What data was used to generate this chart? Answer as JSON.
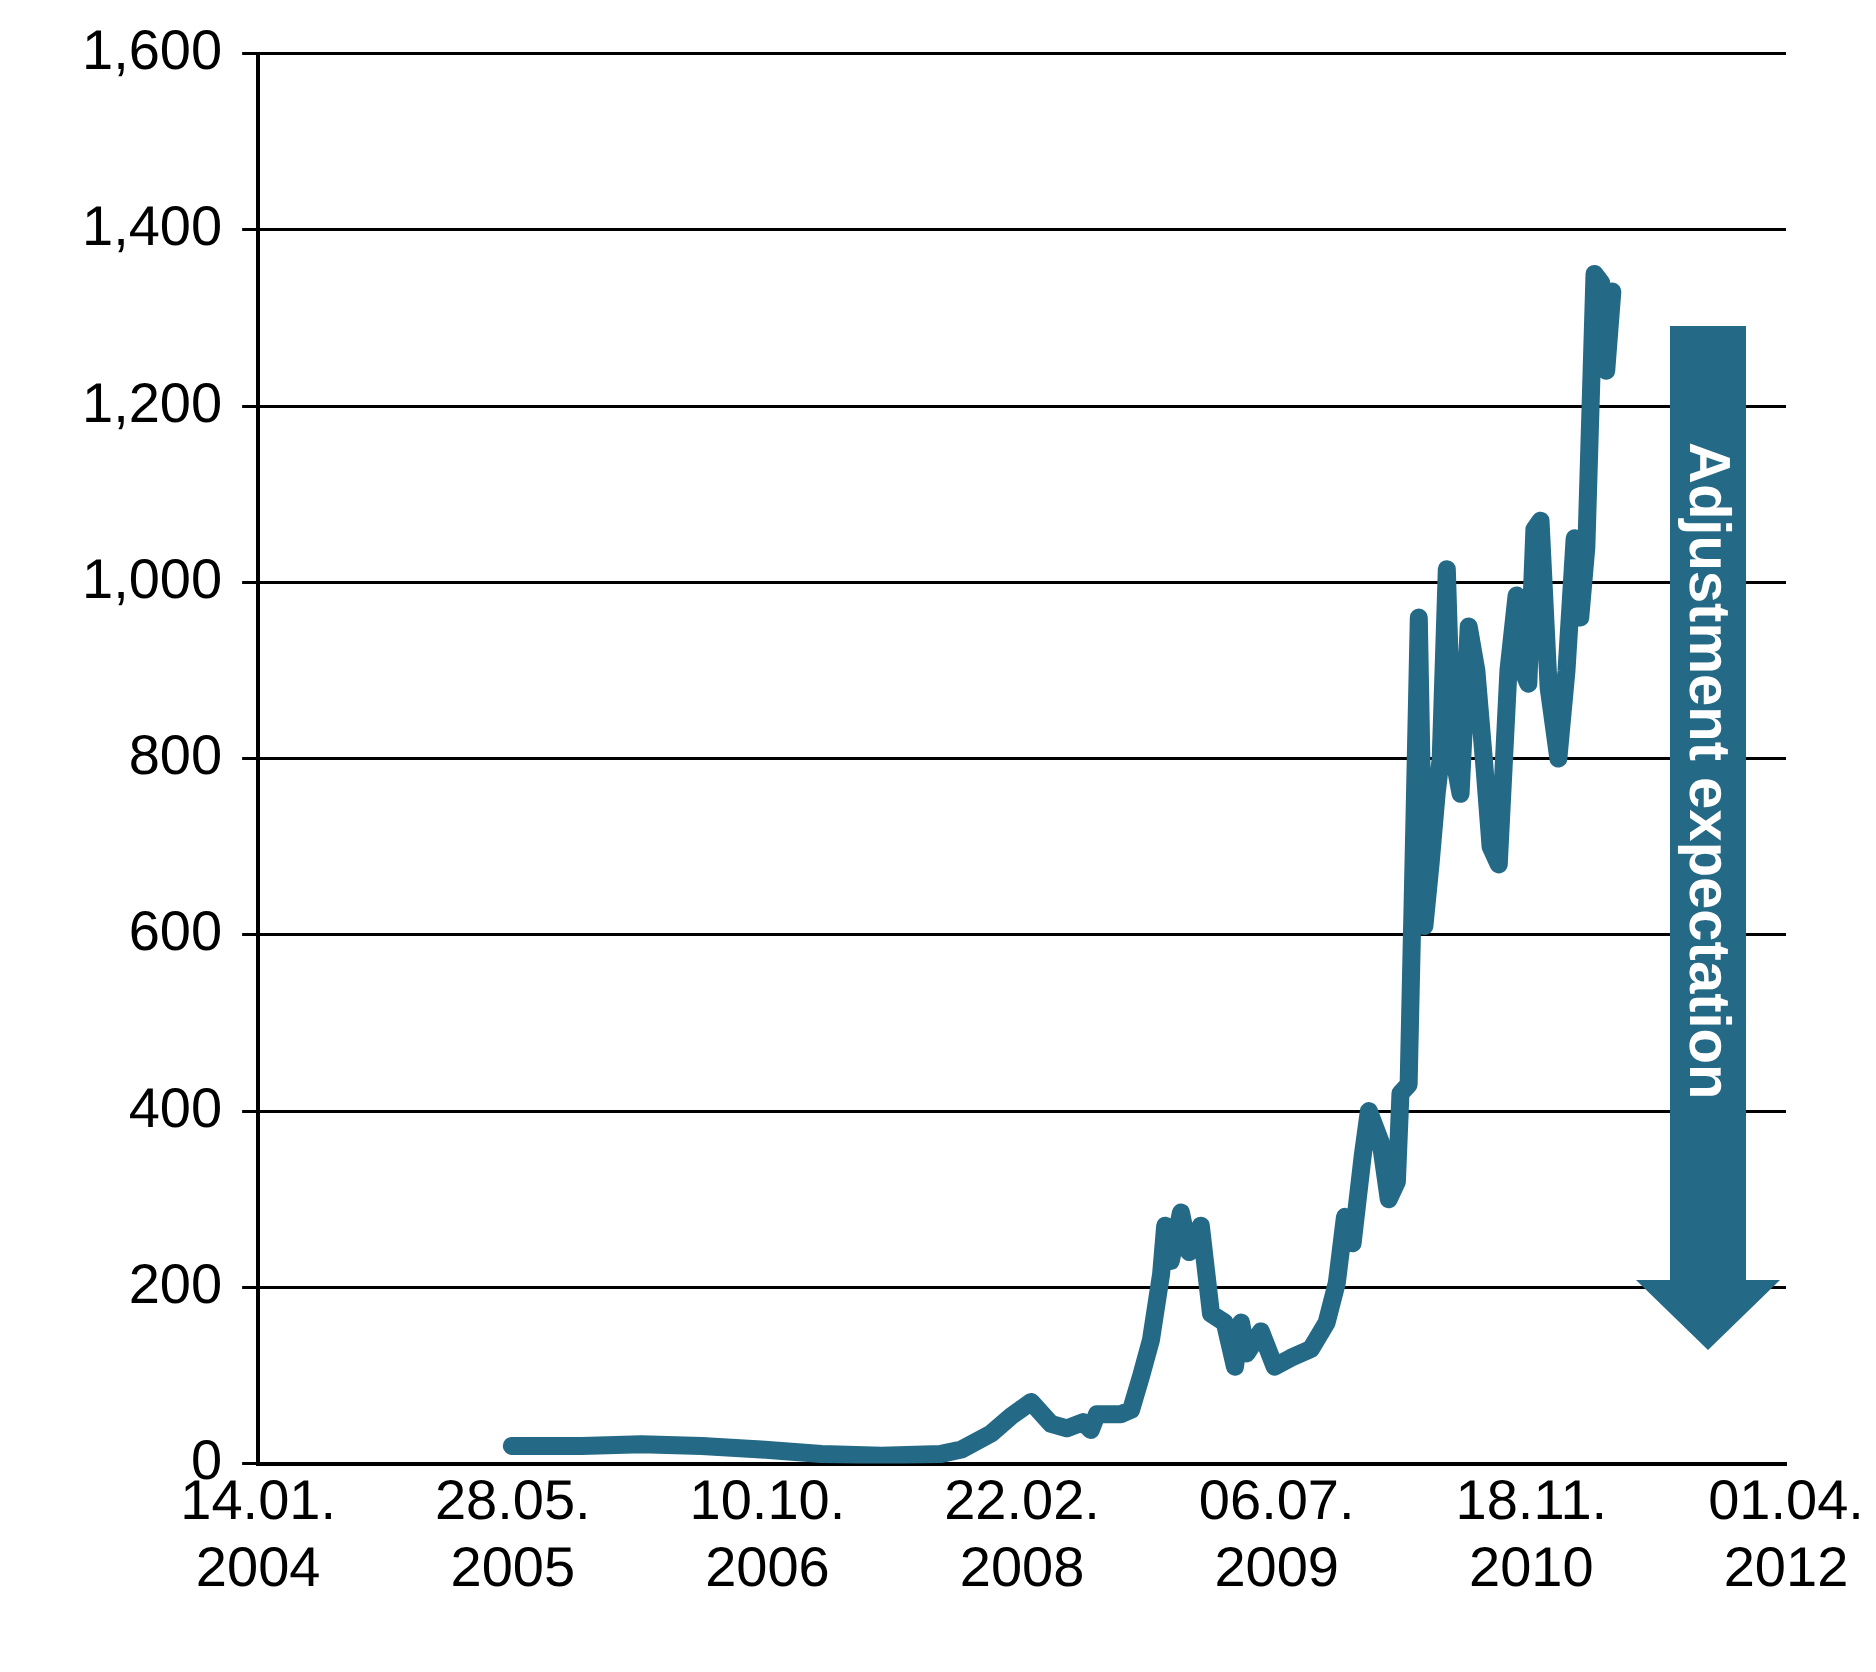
{
  "chart_data": {
    "type": "line",
    "x": [
      "2005-05-26",
      "2005-10-10",
      "2006-02-05",
      "2006-06-03",
      "2006-09-28",
      "2007-01-24",
      "2007-05-22",
      "2007-09-16",
      "2007-10-26",
      "2007-12-23",
      "2008-02-01",
      "2008-03-11",
      "2008-04-19",
      "2008-05-20",
      "2008-06-21",
      "2008-07-06",
      "2008-07-18",
      "2008-09-03",
      "2008-09-23",
      "2008-10-13",
      "2008-11-01",
      "2008-11-21",
      "2008-11-29",
      "2008-12-10",
      "2008-12-30",
      "2009-01-15",
      "2009-02-07",
      "2009-02-27",
      "2009-03-26",
      "2009-04-15",
      "2009-04-27",
      "2009-05-08",
      "2009-06-05",
      "2009-07-02",
      "2009-08-03",
      "2009-09-11",
      "2009-10-12",
      "2009-11-01",
      "2009-11-17",
      "2009-12-02",
      "2009-12-22",
      "2010-01-03",
      "2010-01-26",
      "2010-02-11",
      "2010-02-27",
      "2010-03-06",
      "2010-03-22",
      "2010-04-03",
      "2010-04-11",
      "2010-04-22",
      "2010-05-04",
      "2010-05-16",
      "2010-05-24",
      "2010-06-05",
      "2010-06-16",
      "2010-07-02",
      "2010-07-18",
      "2010-08-02",
      "2010-08-18",
      "2010-08-30",
      "2010-09-15",
      "2010-10-04",
      "2010-10-20",
      "2010-11-01",
      "2010-11-12",
      "2010-11-24",
      "2010-12-06",
      "2010-12-22",
      "2011-01-10",
      "2011-01-26",
      "2011-02-11",
      "2011-02-22",
      "2011-03-06",
      "2011-03-22",
      "2011-04-04",
      "2011-04-14",
      "2011-04-26"
    ],
    "series": [
      {
        "color": "#246985",
        "values": [
          20,
          20,
          22,
          20,
          16,
          11,
          9,
          11,
          16,
          34,
          54,
          70,
          45,
          40,
          47,
          38,
          56,
          56,
          61,
          100,
          140,
          215,
          270,
          230,
          285,
          240,
          270,
          170,
          160,
          110,
          160,
          125,
          150,
          110,
          120,
          130,
          160,
          205,
          280,
          250,
          350,
          400,
          365,
          300,
          320,
          420,
          430,
          745,
          960,
          610,
          680,
          760,
          800,
          1015,
          810,
          760,
          950,
          900,
          790,
          700,
          680,
          900,
          985,
          900,
          885,
          1060,
          1070,
          880,
          800,
          900,
          1050,
          960,
          1040,
          1350,
          1340,
          1240,
          1330
        ]
      }
    ],
    "xlim": [
      "2004-01-14",
      "2012-04-01"
    ],
    "xticks": [
      {
        "value": "2004-01-14",
        "label": "14.01. 2004"
      },
      {
        "value": "2005-05-28",
        "label": "28.05. 2005"
      },
      {
        "value": "2006-10-10",
        "label": "10.10. 2006"
      },
      {
        "value": "2008-02-22",
        "label": "22.02. 2008"
      },
      {
        "value": "2009-07-06",
        "label": "06.07. 2009"
      },
      {
        "value": "2010-11-18",
        "label": "18.11. 2010"
      },
      {
        "value": "2012-04-01",
        "label": "01.04. 2012"
      }
    ],
    "ylim": [
      0,
      1600
    ],
    "yticks": [
      0,
      200,
      400,
      600,
      800,
      {
        "value": 1000,
        "label": "1,000"
      },
      {
        "value": 1200,
        "label": "1,200"
      },
      {
        "value": 1400,
        "label": "1,400"
      },
      {
        "value": 1600,
        "label": "1,600"
      }
    ],
    "grid": "y",
    "legend": false,
    "marker": "none",
    "line_style": "solid",
    "annotations": [
      "Adjustment expectation"
    ]
  }
}
